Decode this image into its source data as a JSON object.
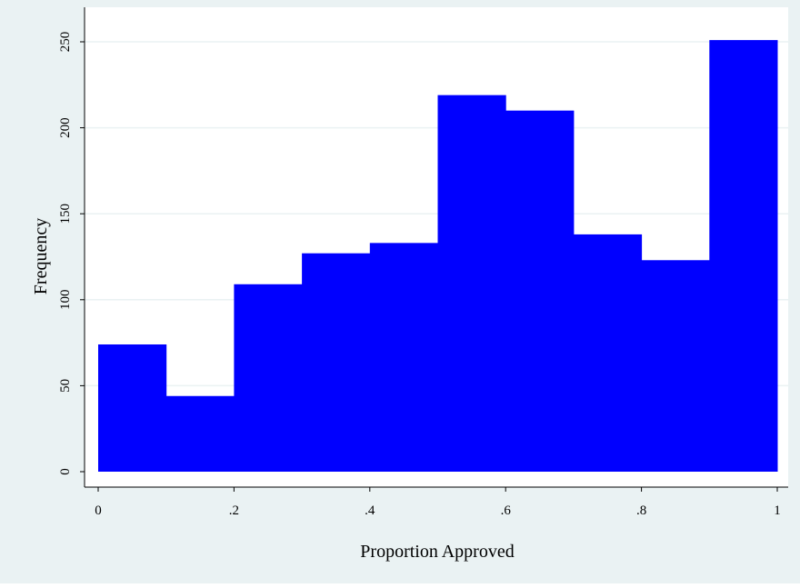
{
  "chart_data": {
    "type": "bar",
    "subtype": "histogram",
    "xlabel": "Proportion Approved",
    "ylabel": "Frequency",
    "xlim": [
      0,
      1
    ],
    "ylim": [
      0,
      250
    ],
    "x_ticks": [
      {
        "value": 0,
        "label": "0"
      },
      {
        "value": 0.2,
        "label": ".2"
      },
      {
        "value": 0.4,
        "label": ".4"
      },
      {
        "value": 0.6,
        "label": ".6"
      },
      {
        "value": 0.8,
        "label": ".8"
      },
      {
        "value": 1,
        "label": "1"
      }
    ],
    "y_ticks": [
      {
        "value": 0,
        "label": "0"
      },
      {
        "value": 50,
        "label": "50"
      },
      {
        "value": 100,
        "label": "100"
      },
      {
        "value": 150,
        "label": "150"
      },
      {
        "value": 200,
        "label": "200"
      },
      {
        "value": 250,
        "label": "250"
      }
    ],
    "bins": [
      {
        "x0": 0.0,
        "x1": 0.1,
        "value": 74
      },
      {
        "x0": 0.1,
        "x1": 0.2,
        "value": 44
      },
      {
        "x0": 0.2,
        "x1": 0.3,
        "value": 109
      },
      {
        "x0": 0.3,
        "x1": 0.4,
        "value": 127
      },
      {
        "x0": 0.4,
        "x1": 0.5,
        "value": 133
      },
      {
        "x0": 0.5,
        "x1": 0.6,
        "value": 219
      },
      {
        "x0": 0.6,
        "x1": 0.7,
        "value": 210
      },
      {
        "x0": 0.7,
        "x1": 0.8,
        "value": 138
      },
      {
        "x0": 0.8,
        "x1": 0.9,
        "value": 123
      },
      {
        "x0": 0.9,
        "x1": 1.0,
        "value": 251
      }
    ],
    "grid": "horizontal",
    "colors": {
      "bar": "#0000ff",
      "outer_background": "#eaf2f3",
      "plot_background": "#ffffff",
      "grid": "#eaf2f3"
    }
  }
}
